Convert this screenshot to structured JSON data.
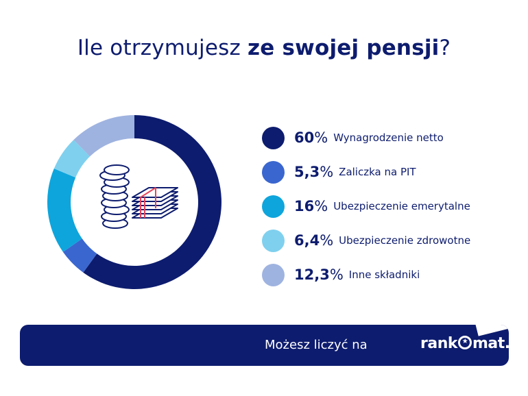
{
  "title": {
    "prefix": "Ile otrzymujesz ",
    "bold": "ze swojej pensji",
    "suffix": "?"
  },
  "colors": {
    "navy": "#0d1c6e",
    "royal_blue": "#3a66cf",
    "cyan": "#0ea5dc",
    "light_cyan": "#7fd0ee",
    "lavender": "#9fb3e0"
  },
  "chart_data": {
    "type": "pie",
    "variant": "donut",
    "categories": [
      "Wynagrodzenie netto",
      "Zaliczka na PIT",
      "Ubezpieczenie emerytalne",
      "Ubezpieczenie zdrowotne",
      "Inne składniki"
    ],
    "values": [
      60,
      5.3,
      16,
      6.4,
      12.3
    ],
    "value_labels": [
      "60",
      "5,3",
      "16",
      "6,4",
      "12,3"
    ],
    "unit": "%",
    "colors": [
      "#0d1c6e",
      "#3a66cf",
      "#0ea5dc",
      "#7fd0ee",
      "#9fb3e0"
    ],
    "legend": "right"
  },
  "center_icon": "coins-and-banknotes-icon",
  "footer": {
    "text": "Możesz liczyć na",
    "brand": "rankomat.pl",
    "brand_star": "★"
  }
}
